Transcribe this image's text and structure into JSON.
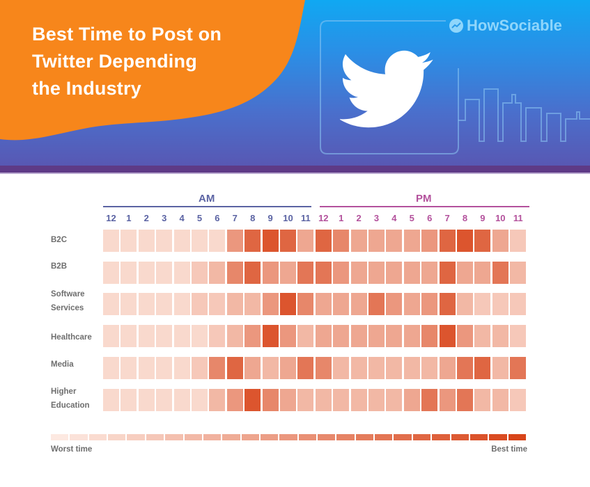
{
  "header": {
    "title_lines": [
      "Best Time to Post on",
      "Twitter Depending",
      "the Industry"
    ],
    "brand": "HowSociable",
    "brand_icon": "trend-line-icon",
    "illustration_icon": "twitter-bird-icon",
    "colors": {
      "orange": "#f7861b",
      "blue": "#10a8f2",
      "purple": "#5e3a86"
    }
  },
  "chart_data": {
    "type": "heatmap",
    "title": "Best Time to Post on Twitter Depending the Industry",
    "x_groups": [
      {
        "label": "AM",
        "color": "#5b63a3"
      },
      {
        "label": "PM",
        "color": "#b3519c"
      }
    ],
    "x": [
      "12",
      "1",
      "2",
      "3",
      "4",
      "5",
      "6",
      "7",
      "8",
      "9",
      "10",
      "11",
      "12",
      "1",
      "2",
      "3",
      "4",
      "5",
      "6",
      "7",
      "8",
      "9",
      "10",
      "11"
    ],
    "y": [
      "B2C",
      "B2B",
      "Software Services",
      "Healthcare",
      "Media",
      "Higher Education"
    ],
    "scale": "0 = worst time, 10 = best time (estimated from color intensity)",
    "values": [
      [
        1,
        1,
        1,
        1,
        1,
        1,
        1,
        5,
        8,
        9,
        8,
        4,
        8,
        6,
        4,
        4,
        4,
        4,
        5,
        8,
        9,
        8,
        4,
        2
      ],
      [
        1,
        1,
        1,
        1,
        1,
        2,
        3,
        6,
        8,
        5,
        4,
        7,
        7,
        5,
        4,
        4,
        4,
        4,
        4,
        8,
        4,
        4,
        7,
        3
      ],
      [
        1,
        1,
        1,
        1,
        1,
        2,
        2,
        3,
        3,
        5,
        9,
        6,
        4,
        4,
        4,
        7,
        5,
        4,
        5,
        8,
        3,
        2,
        2,
        2
      ],
      [
        1,
        1,
        1,
        1,
        1,
        1,
        2,
        3,
        5,
        9,
        5,
        3,
        4,
        4,
        4,
        4,
        4,
        4,
        6,
        9,
        5,
        3,
        3,
        2
      ],
      [
        1,
        1,
        1,
        1,
        1,
        2,
        6,
        8,
        4,
        3,
        4,
        7,
        6,
        3,
        3,
        3,
        3,
        3,
        3,
        4,
        7,
        8,
        3,
        7
      ],
      [
        1,
        1,
        1,
        1,
        1,
        1,
        3,
        5,
        9,
        6,
        4,
        3,
        3,
        3,
        3,
        3,
        3,
        4,
        7,
        5,
        7,
        3,
        3,
        2
      ]
    ],
    "legend": {
      "min_label": "Worst time",
      "max_label": "Best time",
      "steps": 25
    },
    "colors": {
      "low": "#fde6dd",
      "high": "#d8451a"
    }
  }
}
